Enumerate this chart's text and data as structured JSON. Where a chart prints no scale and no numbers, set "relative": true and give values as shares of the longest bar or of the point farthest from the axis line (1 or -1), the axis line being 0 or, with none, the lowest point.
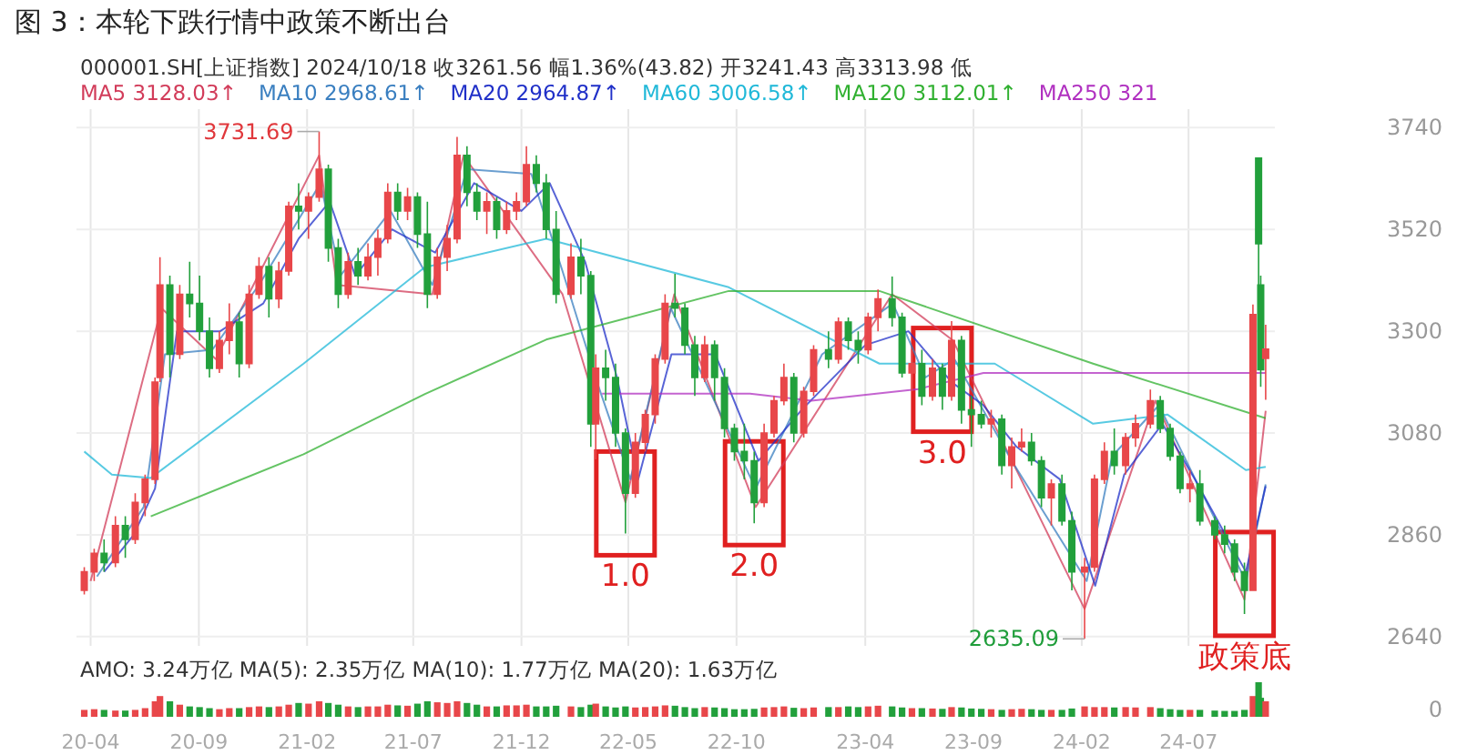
{
  "chart_data": [
    {
      "type": "candlestick",
      "title": "图 3：本轮下跌行情中政策不断出台",
      "subtitle": "000001.SH[上证指数]   2024/10/18   收3261.56   幅1.36%(43.82)   开3241.43   高3313.98   低",
      "x": [
        "2020-03-23",
        "2020-04-06",
        "2020-04-20",
        "2020-05-06",
        "2020-05-20",
        "2020-06-03",
        "2020-06-17",
        "2020-07-01",
        "2020-07-08",
        "2020-07-22",
        "2020-08-05",
        "2020-08-19",
        "2020-09-02",
        "2020-09-16",
        "2020-09-30",
        "2020-10-14",
        "2020-10-28",
        "2020-11-11",
        "2020-11-25",
        "2020-12-09",
        "2020-12-23",
        "2021-01-06",
        "2021-01-20",
        "2021-02-03",
        "2021-02-18",
        "2021-03-03",
        "2021-03-17",
        "2021-03-31",
        "2021-04-14",
        "2021-04-28",
        "2021-05-12",
        "2021-05-26",
        "2021-06-09",
        "2021-06-23",
        "2021-07-07",
        "2021-07-21",
        "2021-08-04",
        "2021-08-18",
        "2021-09-01",
        "2021-09-15",
        "2021-09-29",
        "2021-10-13",
        "2021-10-27",
        "2021-11-10",
        "2021-11-24",
        "2021-12-08",
        "2021-12-22",
        "2022-01-05",
        "2022-01-19",
        "2022-02-09",
        "2022-02-23",
        "2022-03-09",
        "2022-03-16",
        "2022-03-30",
        "2022-04-13",
        "2022-04-27",
        "2022-05-11",
        "2022-05-25",
        "2022-06-08",
        "2022-06-22",
        "2022-07-06",
        "2022-07-20",
        "2022-08-03",
        "2022-08-17",
        "2022-08-31",
        "2022-09-14",
        "2022-09-28",
        "2022-10-12",
        "2022-10-26",
        "2022-11-09",
        "2022-11-23",
        "2022-12-07",
        "2022-12-21",
        "2023-01-04",
        "2023-01-18",
        "2023-02-08",
        "2023-02-22",
        "2023-03-08",
        "2023-03-22",
        "2023-04-05",
        "2023-04-19",
        "2023-05-09",
        "2023-05-23",
        "2023-06-06",
        "2023-06-20",
        "2023-07-05",
        "2023-07-19",
        "2023-08-01",
        "2023-08-15",
        "2023-08-29",
        "2023-09-12",
        "2023-09-26",
        "2023-10-11",
        "2023-10-25",
        "2023-11-08",
        "2023-11-22",
        "2023-12-06",
        "2023-12-20",
        "2024-01-04",
        "2024-01-18",
        "2024-02-05",
        "2024-02-19",
        "2024-03-04",
        "2024-03-18",
        "2024-04-03",
        "2024-04-17",
        "2024-05-08",
        "2024-05-22",
        "2024-06-05",
        "2024-06-19",
        "2024-07-03",
        "2024-07-17",
        "2024-08-07",
        "2024-08-21",
        "2024-09-04",
        "2024-09-18",
        "2024-09-30",
        "2024-10-08",
        "2024-10-11",
        "2024-10-18"
      ],
      "ohlc": [
        [
          2740,
          2790,
          2731,
          2780
        ],
        [
          2780,
          2830,
          2760,
          2820
        ],
        [
          2820,
          2850,
          2780,
          2800
        ],
        [
          2800,
          2900,
          2790,
          2880
        ],
        [
          2880,
          2900,
          2810,
          2850
        ],
        [
          2850,
          2950,
          2840,
          2930
        ],
        [
          2930,
          2990,
          2900,
          2980
        ],
        [
          2980,
          3200,
          2970,
          3190
        ],
        [
          3200,
          3460,
          3190,
          3400
        ],
        [
          3400,
          3420,
          3200,
          3250
        ],
        [
          3250,
          3400,
          3240,
          3380
        ],
        [
          3380,
          3450,
          3330,
          3360
        ],
        [
          3360,
          3420,
          3280,
          3300
        ],
        [
          3300,
          3330,
          3200,
          3220
        ],
        [
          3220,
          3300,
          3210,
          3280
        ],
        [
          3280,
          3360,
          3250,
          3320
        ],
        [
          3320,
          3340,
          3200,
          3230
        ],
        [
          3230,
          3400,
          3220,
          3380
        ],
        [
          3380,
          3460,
          3370,
          3440
        ],
        [
          3440,
          3460,
          3330,
          3370
        ],
        [
          3370,
          3450,
          3350,
          3430
        ],
        [
          3430,
          3580,
          3420,
          3570
        ],
        [
          3570,
          3620,
          3520,
          3560
        ],
        [
          3560,
          3600,
          3500,
          3590
        ],
        [
          3590,
          3731.69,
          3580,
          3650
        ],
        [
          3650,
          3660,
          3450,
          3480
        ],
        [
          3480,
          3500,
          3350,
          3380
        ],
        [
          3380,
          3470,
          3370,
          3450
        ],
        [
          3450,
          3480,
          3400,
          3420
        ],
        [
          3420,
          3490,
          3410,
          3460
        ],
        [
          3460,
          3520,
          3420,
          3500
        ],
        [
          3500,
          3620,
          3490,
          3600
        ],
        [
          3600,
          3620,
          3540,
          3560
        ],
        [
          3560,
          3610,
          3540,
          3590
        ],
        [
          3590,
          3600,
          3480,
          3510
        ],
        [
          3510,
          3580,
          3350,
          3380
        ],
        [
          3380,
          3480,
          3370,
          3460
        ],
        [
          3460,
          3530,
          3430,
          3500
        ],
        [
          3500,
          3720,
          3490,
          3680
        ],
        [
          3680,
          3700,
          3570,
          3600
        ],
        [
          3600,
          3620,
          3540,
          3560
        ],
        [
          3560,
          3600,
          3510,
          3580
        ],
        [
          3580,
          3590,
          3500,
          3520
        ],
        [
          3520,
          3580,
          3510,
          3560
        ],
        [
          3560,
          3600,
          3540,
          3580
        ],
        [
          3580,
          3700,
          3570,
          3660
        ],
        [
          3660,
          3680,
          3600,
          3620
        ],
        [
          3620,
          3640,
          3500,
          3520
        ],
        [
          3520,
          3560,
          3360,
          3380
        ],
        [
          3380,
          3490,
          3370,
          3460
        ],
        [
          3460,
          3500,
          3380,
          3420
        ],
        [
          3420,
          3430,
          3050,
          3100
        ],
        [
          3100,
          3250,
          3023,
          3220
        ],
        [
          3220,
          3260,
          3150,
          3200
        ],
        [
          3200,
          3230,
          3050,
          3080
        ],
        [
          3080,
          3090,
          2863,
          2950
        ],
        [
          2950,
          3080,
          2940,
          3060
        ],
        [
          3060,
          3130,
          3040,
          3120
        ],
        [
          3120,
          3250,
          3100,
          3240
        ],
        [
          3240,
          3380,
          3230,
          3360
        ],
        [
          3360,
          3424,
          3330,
          3350
        ],
        [
          3350,
          3360,
          3250,
          3270
        ],
        [
          3270,
          3290,
          3160,
          3200
        ],
        [
          3200,
          3290,
          3190,
          3270
        ],
        [
          3270,
          3280,
          3150,
          3200
        ],
        [
          3200,
          3220,
          3070,
          3090
        ],
        [
          3090,
          3100,
          3020,
          3040
        ],
        [
          3040,
          3100,
          2980,
          3020
        ],
        [
          3020,
          3040,
          2885,
          2930
        ],
        [
          2930,
          3100,
          2920,
          3080
        ],
        [
          3080,
          3160,
          3070,
          3150
        ],
        [
          3150,
          3230,
          3140,
          3200
        ],
        [
          3200,
          3210,
          3060,
          3080
        ],
        [
          3080,
          3180,
          3070,
          3170
        ],
        [
          3170,
          3270,
          3160,
          3260
        ],
        [
          3260,
          3300,
          3220,
          3240
        ],
        [
          3240,
          3330,
          3230,
          3320
        ],
        [
          3320,
          3330,
          3260,
          3280
        ],
        [
          3280,
          3300,
          3230,
          3260
        ],
        [
          3260,
          3340,
          3250,
          3330
        ],
        [
          3330,
          3390,
          3300,
          3370
        ],
        [
          3370,
          3418,
          3310,
          3330
        ],
        [
          3330,
          3340,
          3200,
          3210
        ],
        [
          3210,
          3260,
          3170,
          3230
        ],
        [
          3230,
          3260,
          3140,
          3160
        ],
        [
          3160,
          3240,
          3150,
          3220
        ],
        [
          3220,
          3230,
          3130,
          3160
        ],
        [
          3160,
          3322,
          3150,
          3280
        ],
        [
          3280,
          3290,
          3100,
          3130
        ],
        [
          3130,
          3160,
          3050,
          3120
        ],
        [
          3120,
          3150,
          3090,
          3100
        ],
        [
          3100,
          3130,
          3070,
          3110
        ],
        [
          3110,
          3120,
          2990,
          3010
        ],
        [
          3010,
          3070,
          2960,
          3050
        ],
        [
          3050,
          3090,
          3040,
          3060
        ],
        [
          3060,
          3080,
          3010,
          3020
        ],
        [
          3020,
          3030,
          2920,
          2940
        ],
        [
          2940,
          2980,
          2880,
          2970
        ],
        [
          2970,
          2990,
          2880,
          2890
        ],
        [
          2890,
          2910,
          2740,
          2780
        ],
        [
          2780,
          2810,
          2635.09,
          2790
        ],
        [
          2790,
          2990,
          2780,
          2980
        ],
        [
          2980,
          3060,
          2970,
          3040
        ],
        [
          3040,
          3090,
          2990,
          3010
        ],
        [
          3010,
          3080,
          2990,
          3070
        ],
        [
          3070,
          3120,
          3050,
          3100
        ],
        [
          3100,
          3174,
          3090,
          3150
        ],
        [
          3150,
          3160,
          3080,
          3090
        ],
        [
          3090,
          3100,
          3020,
          3030
        ],
        [
          3030,
          3040,
          2950,
          2960
        ],
        [
          2960,
          3000,
          2930,
          2970
        ],
        [
          2970,
          3000,
          2880,
          2890
        ],
        [
          2890,
          2900,
          2850,
          2860
        ],
        [
          2860,
          2880,
          2820,
          2840
        ],
        [
          2840,
          2850,
          2760,
          2780
        ],
        [
          2780,
          2800,
          2689,
          2740
        ],
        [
          2740,
          3358,
          2740,
          3336
        ],
        [
          3674,
          3674,
          3310,
          3489
        ],
        [
          3400,
          3420,
          3180,
          3217
        ],
        [
          3241.43,
          3313.98,
          3152,
          3261.56
        ]
      ],
      "colors": [
        "#e8474a",
        "#e8474a",
        "#22a03c",
        "#e8474a",
        "#22a03c",
        "#e8474a",
        "#e8474a",
        "#e8474a",
        "#e8474a",
        "#22a03c",
        "#e8474a",
        "#22a03c",
        "#22a03c",
        "#22a03c",
        "#e8474a",
        "#e8474a",
        "#22a03c",
        "#e8474a",
        "#e8474a",
        "#22a03c",
        "#e8474a",
        "#e8474a",
        "#22a03c",
        "#e8474a",
        "#e8474a",
        "#22a03c",
        "#22a03c",
        "#e8474a",
        "#22a03c",
        "#e8474a",
        "#e8474a",
        "#e8474a",
        "#22a03c",
        "#e8474a",
        "#22a03c",
        "#22a03c",
        "#e8474a",
        "#e8474a",
        "#e8474a",
        "#22a03c",
        "#22a03c",
        "#e8474a",
        "#22a03c",
        "#e8474a",
        "#e8474a",
        "#e8474a",
        "#22a03c",
        "#22a03c",
        "#22a03c",
        "#e8474a",
        "#22a03c",
        "#22a03c",
        "#e8474a",
        "#22a03c",
        "#22a03c",
        "#22a03c",
        "#e8474a",
        "#e8474a",
        "#e8474a",
        "#e8474a",
        "#22a03c",
        "#22a03c",
        "#22a03c",
        "#e8474a",
        "#22a03c",
        "#22a03c",
        "#22a03c",
        "#22a03c",
        "#22a03c",
        "#e8474a",
        "#e8474a",
        "#e8474a",
        "#22a03c",
        "#e8474a",
        "#e8474a",
        "#22a03c",
        "#e8474a",
        "#22a03c",
        "#22a03c",
        "#e8474a",
        "#e8474a",
        "#22a03c",
        "#22a03c",
        "#e8474a",
        "#22a03c",
        "#e8474a",
        "#22a03c",
        "#e8474a",
        "#22a03c",
        "#22a03c",
        "#22a03c",
        "#e8474a",
        "#22a03c",
        "#e8474a",
        "#e8474a",
        "#22a03c",
        "#22a03c",
        "#e8474a",
        "#22a03c",
        "#22a03c",
        "#e8474a",
        "#e8474a",
        "#e8474a",
        "#22a03c",
        "#e8474a",
        "#e8474a",
        "#e8474a",
        "#22a03c",
        "#22a03c",
        "#22a03c",
        "#e8474a",
        "#22a03c",
        "#22a03c",
        "#22a03c",
        "#22a03c",
        "#22a03c",
        "#e8474a",
        "#22a03c",
        "#22a03c",
        "#e8474a"
      ],
      "series": [
        {
          "name": "MA5 3128.03↑",
          "type": "line",
          "color": "#d23c5a",
          "x": [
            "2020-04-01",
            "2020-07-10",
            "2020-09-25",
            "2021-02-18",
            "2021-03-15",
            "2021-07-28",
            "2021-09-10",
            "2022-01-28",
            "2022-04-27",
            "2022-07-05",
            "2022-10-28",
            "2023-05-09",
            "2023-08-03",
            "2024-02-05",
            "2024-05-15",
            "2024-09-18",
            "2024-10-18"
          ],
          "values": [
            2760,
            3350,
            3240,
            3680,
            3400,
            3380,
            3680,
            3380,
            2930,
            3380,
            2920,
            3380,
            3280,
            2700,
            3150,
            2720,
            3128
          ]
        },
        {
          "name": "MA10 2968.61↑",
          "type": "line",
          "color": "#3a7fc0",
          "x": [
            "2020-04-10",
            "2020-06-15",
            "2020-07-15",
            "2020-09-20",
            "2020-11-25",
            "2021-02-20",
            "2021-03-20",
            "2021-05-30",
            "2021-07-28",
            "2021-09-15",
            "2021-12-15",
            "2022-01-28",
            "2022-03-20",
            "2022-05-04",
            "2022-06-30",
            "2022-10-28",
            "2023-01-30",
            "2023-05-10",
            "2023-06-25",
            "2023-08-05",
            "2023-10-25",
            "2024-02-08",
            "2024-03-15",
            "2024-05-20",
            "2024-08-15",
            "2024-09-20",
            "2024-10-18"
          ],
          "values": [
            2770,
            2920,
            3250,
            3260,
            3400,
            3620,
            3420,
            3560,
            3400,
            3650,
            3640,
            3430,
            3180,
            2980,
            3350,
            2960,
            3250,
            3360,
            3200,
            3240,
            3020,
            2760,
            3030,
            3140,
            2870,
            2760,
            2969
          ]
        },
        {
          "name": "MA20 2964.87↑",
          "type": "line",
          "color": "#2030c8",
          "x": [
            "2020-04-20",
            "2020-06-01",
            "2020-07-01",
            "2020-08-01",
            "2020-10-01",
            "2020-12-01",
            "2021-01-20",
            "2021-03-05",
            "2021-04-10",
            "2021-06-01",
            "2021-08-01",
            "2021-09-25",
            "2021-12-01",
            "2022-01-10",
            "2022-03-01",
            "2022-04-15",
            "2022-05-15",
            "2022-07-01",
            "2022-09-01",
            "2022-11-01",
            "2023-01-01",
            "2023-04-01",
            "2023-06-01",
            "2023-08-01",
            "2023-09-15",
            "2023-11-01",
            "2024-01-01",
            "2024-02-20",
            "2024-04-01",
            "2024-05-25",
            "2024-07-10",
            "2024-09-20",
            "2024-10-18"
          ],
          "values": [
            2780,
            2860,
            2960,
            3300,
            3300,
            3360,
            3500,
            3580,
            3420,
            3520,
            3470,
            3620,
            3560,
            3620,
            3450,
            3200,
            2980,
            3250,
            3250,
            3020,
            3130,
            3270,
            3300,
            3190,
            3140,
            3050,
            2980,
            2750,
            2990,
            3100,
            2980,
            2780,
            2965
          ]
        },
        {
          "name": "MA60 3006.58↑",
          "type": "line",
          "color": "#20b8d8",
          "x": [
            "2020-03-23",
            "2020-05-01",
            "2020-06-25",
            "2021-01-27",
            "2021-07-17",
            "2022-01-05",
            "2022-09-20",
            "2023-04-21",
            "2023-10-01",
            "2024-02-17",
            "2024-06-01",
            "2024-09-20",
            "2024-10-18"
          ],
          "values": [
            3040,
            2990,
            2983,
            3230,
            3438,
            3500,
            3395,
            3230,
            3230,
            3100,
            3120,
            3000,
            3007
          ]
        },
        {
          "name": "MA120 3112.01↑",
          "type": "line",
          "color": "#30b030",
          "x": [
            "2020-06-25",
            "2021-01-27",
            "2021-07-17",
            "2022-01-05",
            "2022-09-20",
            "2023-04-21",
            "2024-02-17",
            "2024-10-18"
          ],
          "values": [
            2900,
            3034,
            3164,
            3282,
            3387,
            3387,
            3230,
            3112
          ]
        },
        {
          "name": "MA250 321",
          "type": "line",
          "color": "#b030c0",
          "x": [
            "2022-03-25",
            "2022-10-20",
            "2023-01-15",
            "2023-06-15",
            "2023-09-15",
            "2024-10-18"
          ],
          "values": [
            3165,
            3165,
            3150,
            3175,
            3210,
            3210
          ]
        }
      ],
      "xlim": [
        "2020-03-12",
        "2024-10-31"
      ],
      "xticks": [
        {
          "value": "2020-04",
          "label": null
        },
        {
          "value": "2020-09",
          "label": null
        },
        {
          "value": "2021-02",
          "label": null
        },
        {
          "value": "2021-07",
          "label": null
        },
        {
          "value": "2021-12",
          "label": null
        },
        {
          "value": "2022-05",
          "label": null
        },
        {
          "value": "2022-10",
          "label": null
        },
        {
          "value": "2023-04",
          "label": null
        },
        {
          "value": "2023-09",
          "label": null
        },
        {
          "value": "2024-02",
          "label": null
        },
        {
          "value": "2024-07",
          "label": null
        }
      ],
      "ylim": [
        2620,
        3780
      ],
      "yticks": [
        2640,
        2860,
        3080,
        3300,
        3520,
        3740
      ],
      "grid": true,
      "legend": "top",
      "tick_labels": "y",
      "annotations": [
        {
          "text": "3731.69",
          "x": "2021-02-18",
          "y": 3731.69
        },
        {
          "text": "2635.09",
          "x": "2024-02-05",
          "y": 2635.09
        },
        {
          "text": "1.0",
          "x": "2022-04-27",
          "y": 2863
        },
        {
          "text": "2.0",
          "x": "2022-10-26",
          "y": 2885
        },
        {
          "text": "3.0",
          "x": "2023-07-19",
          "y": 3130
        },
        {
          "text": "政策底",
          "x": "2024-09-18",
          "y": 2689
        }
      ]
    },
    {
      "type": "bar",
      "title": "AMO: 3.24万亿   MA(5): 2.35万亿   MA(10): 1.77万亿   MA(20): 1.63万亿",
      "relative": true,
      "x": [
        "2020-03-23",
        "2020-04-06",
        "2020-04-20",
        "2020-05-06",
        "2020-05-20",
        "2020-06-03",
        "2020-06-17",
        "2020-07-01",
        "2020-07-08",
        "2020-07-22",
        "2020-08-05",
        "2020-08-19",
        "2020-09-02",
        "2020-09-16",
        "2020-09-30",
        "2020-10-14",
        "2020-10-28",
        "2020-11-11",
        "2020-11-25",
        "2020-12-09",
        "2020-12-23",
        "2021-01-06",
        "2021-01-20",
        "2021-02-03",
        "2021-02-18",
        "2021-03-03",
        "2021-03-17",
        "2021-03-31",
        "2021-04-14",
        "2021-04-28",
        "2021-05-12",
        "2021-05-26",
        "2021-06-09",
        "2021-06-23",
        "2021-07-07",
        "2021-07-21",
        "2021-08-04",
        "2021-08-18",
        "2021-09-01",
        "2021-09-15",
        "2021-09-29",
        "2021-10-13",
        "2021-10-27",
        "2021-11-10",
        "2021-11-24",
        "2021-12-08",
        "2021-12-22",
        "2022-01-05",
        "2022-01-19",
        "2022-02-09",
        "2022-02-23",
        "2022-03-09",
        "2022-03-16",
        "2022-03-30",
        "2022-04-13",
        "2022-04-27",
        "2022-05-11",
        "2022-05-25",
        "2022-06-08",
        "2022-06-22",
        "2022-07-06",
        "2022-07-20",
        "2022-08-03",
        "2022-08-17",
        "2022-08-31",
        "2022-09-14",
        "2022-09-28",
        "2022-10-12",
        "2022-10-26",
        "2022-11-09",
        "2022-11-23",
        "2022-12-07",
        "2022-12-21",
        "2023-01-04",
        "2023-01-18",
        "2023-02-08",
        "2023-02-22",
        "2023-03-08",
        "2023-03-22",
        "2023-04-05",
        "2023-04-19",
        "2023-05-09",
        "2023-05-23",
        "2023-06-06",
        "2023-06-20",
        "2023-07-05",
        "2023-07-19",
        "2023-08-01",
        "2023-08-15",
        "2023-08-29",
        "2023-09-12",
        "2023-09-26",
        "2023-10-11",
        "2023-10-25",
        "2023-11-08",
        "2023-11-22",
        "2023-12-06",
        "2023-12-20",
        "2024-01-04",
        "2024-01-18",
        "2024-02-05",
        "2024-02-19",
        "2024-03-04",
        "2024-03-18",
        "2024-04-03",
        "2024-04-17",
        "2024-05-08",
        "2024-05-22",
        "2024-06-05",
        "2024-06-19",
        "2024-07-03",
        "2024-07-17",
        "2024-08-07",
        "2024-08-21",
        "2024-09-04",
        "2024-09-18",
        "2024-09-30",
        "2024-10-08",
        "2024-10-11",
        "2024-10-18"
      ],
      "values": [
        0.2,
        0.22,
        0.2,
        0.18,
        0.18,
        0.2,
        0.25,
        0.45,
        0.6,
        0.45,
        0.35,
        0.3,
        0.28,
        0.25,
        0.22,
        0.25,
        0.25,
        0.28,
        0.3,
        0.28,
        0.3,
        0.35,
        0.4,
        0.38,
        0.45,
        0.4,
        0.35,
        0.3,
        0.28,
        0.3,
        0.3,
        0.35,
        0.33,
        0.32,
        0.38,
        0.45,
        0.42,
        0.4,
        0.45,
        0.4,
        0.35,
        0.3,
        0.3,
        0.33,
        0.33,
        0.35,
        0.3,
        0.3,
        0.32,
        0.3,
        0.28,
        0.35,
        0.38,
        0.3,
        0.27,
        0.3,
        0.27,
        0.28,
        0.3,
        0.33,
        0.32,
        0.28,
        0.25,
        0.28,
        0.27,
        0.25,
        0.22,
        0.22,
        0.23,
        0.27,
        0.28,
        0.3,
        0.26,
        0.25,
        0.27,
        0.28,
        0.28,
        0.3,
        0.28,
        0.3,
        0.32,
        0.3,
        0.27,
        0.25,
        0.25,
        0.24,
        0.23,
        0.28,
        0.27,
        0.24,
        0.23,
        0.22,
        0.2,
        0.22,
        0.23,
        0.22,
        0.2,
        0.2,
        0.2,
        0.24,
        0.3,
        0.28,
        0.28,
        0.27,
        0.28,
        0.27,
        0.28,
        0.25,
        0.22,
        0.2,
        0.2,
        0.2,
        0.18,
        0.17,
        0.17,
        0.2,
        0.6,
        1.0,
        0.55,
        0.45
      ],
      "colors": [
        "#e8474a",
        "#e8474a",
        "#22a03c",
        "#e8474a",
        "#22a03c",
        "#e8474a",
        "#e8474a",
        "#e8474a",
        "#e8474a",
        "#22a03c",
        "#e8474a",
        "#22a03c",
        "#22a03c",
        "#22a03c",
        "#e8474a",
        "#e8474a",
        "#22a03c",
        "#e8474a",
        "#e8474a",
        "#22a03c",
        "#e8474a",
        "#e8474a",
        "#22a03c",
        "#e8474a",
        "#e8474a",
        "#22a03c",
        "#22a03c",
        "#e8474a",
        "#22a03c",
        "#e8474a",
        "#e8474a",
        "#e8474a",
        "#22a03c",
        "#e8474a",
        "#22a03c",
        "#22a03c",
        "#e8474a",
        "#e8474a",
        "#e8474a",
        "#22a03c",
        "#22a03c",
        "#e8474a",
        "#22a03c",
        "#e8474a",
        "#e8474a",
        "#e8474a",
        "#22a03c",
        "#22a03c",
        "#22a03c",
        "#e8474a",
        "#22a03c",
        "#22a03c",
        "#e8474a",
        "#22a03c",
        "#22a03c",
        "#22a03c",
        "#e8474a",
        "#e8474a",
        "#e8474a",
        "#e8474a",
        "#22a03c",
        "#22a03c",
        "#22a03c",
        "#e8474a",
        "#22a03c",
        "#22a03c",
        "#22a03c",
        "#22a03c",
        "#22a03c",
        "#e8474a",
        "#e8474a",
        "#e8474a",
        "#22a03c",
        "#e8474a",
        "#e8474a",
        "#22a03c",
        "#e8474a",
        "#22a03c",
        "#22a03c",
        "#e8474a",
        "#e8474a",
        "#22a03c",
        "#22a03c",
        "#e8474a",
        "#22a03c",
        "#e8474a",
        "#22a03c",
        "#e8474a",
        "#22a03c",
        "#22a03c",
        "#22a03c",
        "#e8474a",
        "#22a03c",
        "#e8474a",
        "#e8474a",
        "#22a03c",
        "#22a03c",
        "#e8474a",
        "#22a03c",
        "#22a03c",
        "#e8474a",
        "#e8474a",
        "#e8474a",
        "#22a03c",
        "#e8474a",
        "#e8474a",
        "#e8474a",
        "#22a03c",
        "#22a03c",
        "#22a03c",
        "#e8474a",
        "#22a03c",
        "#22a03c",
        "#22a03c",
        "#22a03c",
        "#22a03c",
        "#e8474a",
        "#22a03c",
        "#22a03c",
        "#e8474a"
      ],
      "xlim": [
        "2020-03-12",
        "2024-10-31"
      ],
      "xticks": [
        {
          "value": "2020-04",
          "label": "20-04"
        },
        {
          "value": "2020-09",
          "label": "20-09"
        },
        {
          "value": "2021-02",
          "label": "21-02"
        },
        {
          "value": "2021-07",
          "label": "21-07"
        },
        {
          "value": "2021-12",
          "label": "21-12"
        },
        {
          "value": "2022-05",
          "label": "22-05"
        },
        {
          "value": "2022-10",
          "label": "22-10"
        },
        {
          "value": "2023-04",
          "label": "23-04"
        },
        {
          "value": "2023-09",
          "label": "23-09"
        },
        {
          "value": "2024-02",
          "label": "24-02"
        },
        {
          "value": "2024-07",
          "label": "24-07"
        }
      ],
      "tick_labels": "x",
      "annotations": [
        "0"
      ]
    }
  ]
}
